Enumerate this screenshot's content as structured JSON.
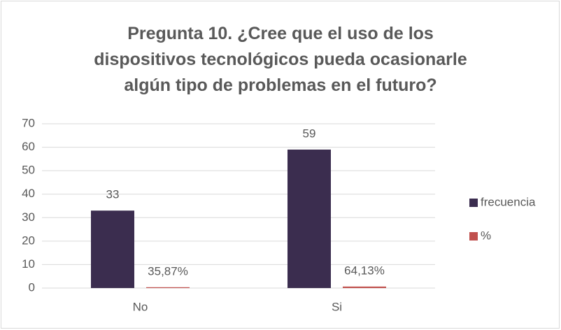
{
  "chart_data": {
    "type": "bar",
    "title": "Pregunta 10. ¿Cree que el uso de los dispositivos tecnológicos pueda ocasionarle algún tipo de problemas en el futuro?",
    "categories": [
      "No",
      "Si"
    ],
    "series": [
      {
        "name": "frecuencia",
        "color": "#3b2d4f",
        "values": [
          33,
          59
        ]
      },
      {
        "name": "%",
        "color": "#c0504d",
        "values": [
          0.3587,
          0.6413
        ],
        "value_labels": [
          "35,87%",
          "64,13%"
        ]
      }
    ],
    "ylim": [
      0,
      70
    ],
    "yticks": [
      0,
      10,
      20,
      30,
      40,
      50,
      60,
      70
    ],
    "grid": true,
    "legend": "right"
  }
}
